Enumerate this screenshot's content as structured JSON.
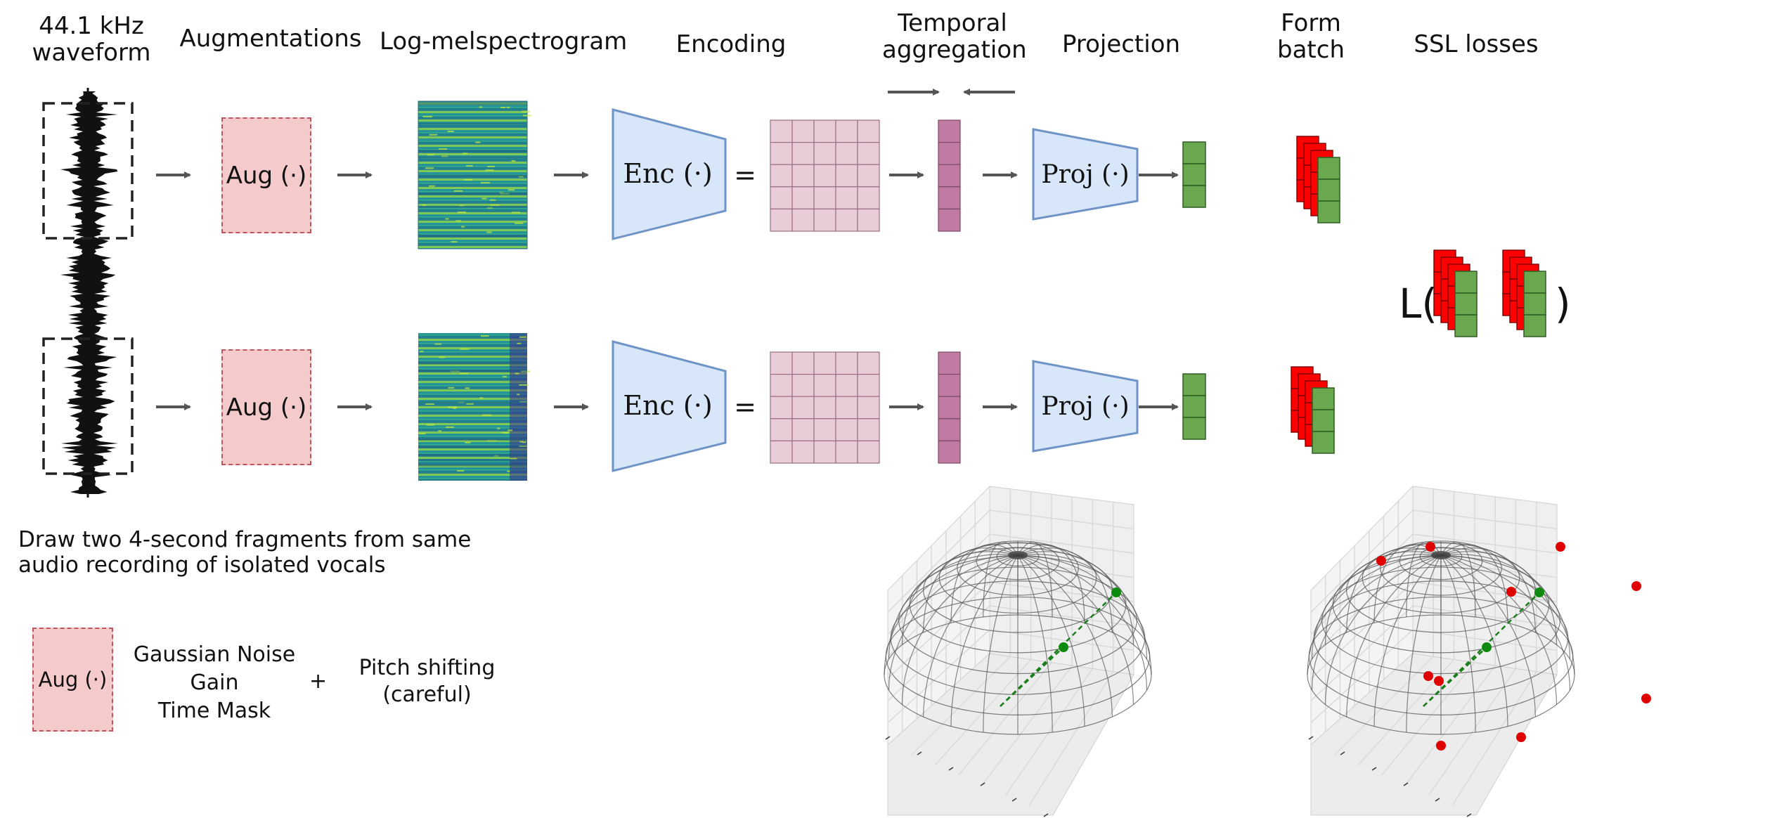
{
  "headers": {
    "waveform": "44.1 kHz\nwaveform",
    "augmentations": "Augmentations",
    "melspec": "Log-melspectrogram",
    "encoding": "Encoding",
    "temporal": "Temporal\naggregation",
    "projection": "Projection",
    "form_batch": "Form\nbatch",
    "ssl": "SSL losses"
  },
  "blocks": {
    "aug_label": "Aug (·)",
    "enc_label": "Enc (·)",
    "proj_label": "Proj (·)",
    "equals": "=",
    "loss_prefix": "L(",
    "loss_suffix": ")"
  },
  "notes": {
    "fragments": "Draw two 4-second fragments from same\naudio recording of isolated vocals",
    "legend_aug": "Aug (·)",
    "aug_list": "Gaussian Noise\nGain\nTime Mask",
    "plus": "+",
    "pitch": "Pitch shifting\n(careful)"
  },
  "colors": {
    "aug_fill": "#f5caca",
    "aug_border": "#c2545f",
    "enc_fill": "#d7e6f9",
    "enc_border": "#6e93c6",
    "grid_fill": "#e8cdd8",
    "vector_fill": "#c17ba3",
    "embed_green": "#6aa84f",
    "batch_red": "#ff0000",
    "arrow": "#555555"
  },
  "icons": {
    "waveform": "waveform-graphic",
    "spectrogram": "spectrogram-graphic",
    "hemisphere": "unit-hemisphere-3d-plot"
  }
}
